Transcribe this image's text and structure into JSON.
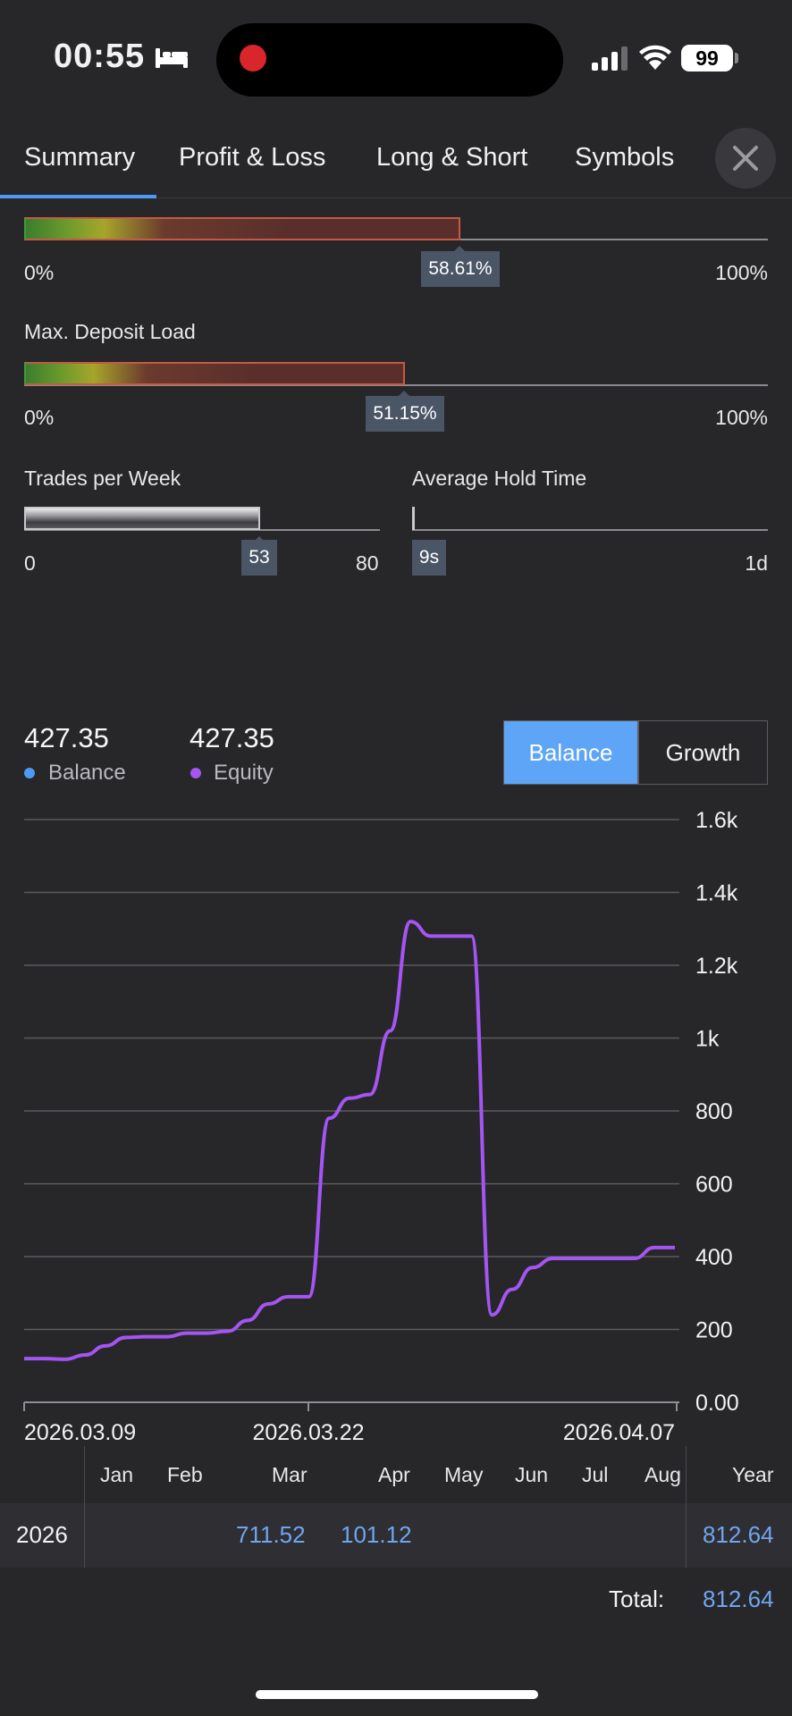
{
  "status_bar": {
    "time": "00:55",
    "battery": "99"
  },
  "tabs": [
    {
      "label": "Summary",
      "active": true
    },
    {
      "label": "Profit & Loss"
    },
    {
      "label": "Long & Short"
    },
    {
      "label": "Symbols"
    }
  ],
  "meters": {
    "risk": {
      "value": 0.5861,
      "value_label": "58.61%",
      "min_label": "0%",
      "max_label": "100%"
    },
    "deposit_load": {
      "label": "Max. Deposit Load",
      "value": 0.5115,
      "value_label": "51.15%",
      "min_label": "0%",
      "max_label": "100%"
    },
    "trades_per_week": {
      "label": "Trades per Week",
      "value": 53,
      "min_label": "0",
      "max_label": "80",
      "value_label": "53"
    },
    "avg_hold_time": {
      "label": "Average Hold Time",
      "value_label": "9s",
      "min_label": "",
      "max_label": "1d",
      "value": 0.0
    }
  },
  "summary": {
    "balance_value": "427.35",
    "balance_label": "Balance",
    "equity_value": "427.35",
    "equity_label": "Equity",
    "balance_color": "#4d9af5",
    "equity_color": "#a455f2",
    "toggle": {
      "balance": "Balance",
      "growth": "Growth",
      "selected": "Balance"
    }
  },
  "chart_data": {
    "type": "line",
    "y_ticks": [
      "0.00",
      "200",
      "400",
      "600",
      "800",
      "1k",
      "1.2k",
      "1.4k",
      "1.6k"
    ],
    "ylim": [
      0,
      1600
    ],
    "x_tick_labels": [
      "2026.03.09",
      "2026.03.22",
      "2026.04.07"
    ],
    "grid": true,
    "series": [
      {
        "name": "Equity",
        "color": "#a455f2",
        "values": [
          120,
          120,
          118,
          130,
          155,
          178,
          180,
          180,
          190,
          190,
          195,
          225,
          270,
          290,
          290,
          780,
          835,
          845,
          1020,
          1320,
          1280,
          1280,
          1280,
          240,
          310,
          370,
          395,
          395,
          395,
          395,
          395,
          425,
          425
        ]
      }
    ]
  },
  "monthly_table": {
    "months": [
      "Jan",
      "Feb",
      "Mar",
      "Apr",
      "May",
      "Jun",
      "Jul",
      "Aug"
    ],
    "year_header": "Year",
    "rows": [
      {
        "year": "2026",
        "values": [
          "",
          "",
          "711.52",
          "101.12",
          "",
          "",
          "",
          ""
        ],
        "total": "812.64"
      }
    ],
    "total_label": "Total:",
    "total_value": "812.64"
  }
}
